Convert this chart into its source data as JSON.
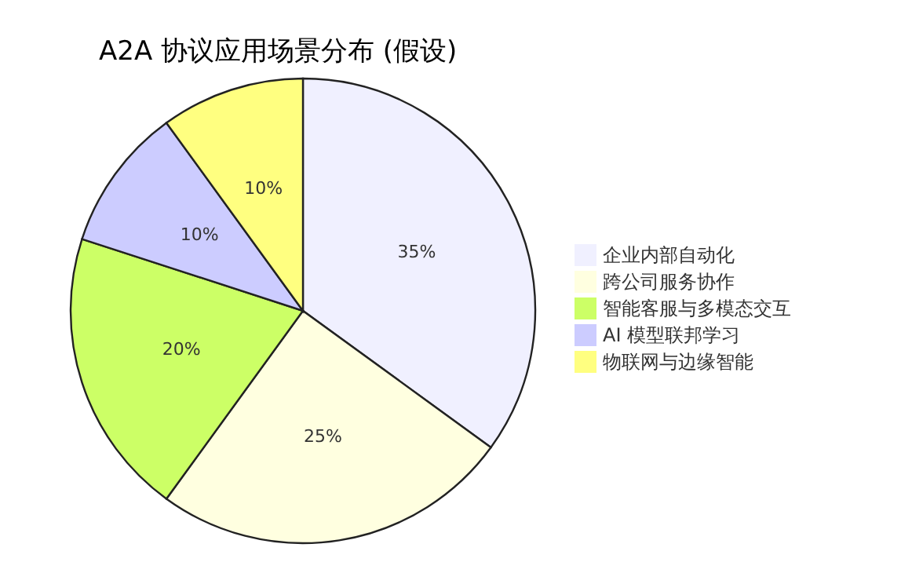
{
  "chart_data": {
    "type": "pie",
    "title": "A2A 协议应用场景分布 (假设)",
    "categories": [
      "企业内部自动化",
      "跨公司服务协作",
      "智能客服与多模态交互",
      "AI 模型联邦学习",
      "物联网与边缘智能"
    ],
    "values": [
      35,
      25,
      20,
      10,
      10
    ],
    "value_labels": [
      "35%",
      "25%",
      "20%",
      "10%",
      "10%"
    ],
    "colors": [
      "#f0f0ff",
      "#ffffe0",
      "#ccff66",
      "#ccccff",
      "#ffff80"
    ],
    "legend": "right"
  }
}
